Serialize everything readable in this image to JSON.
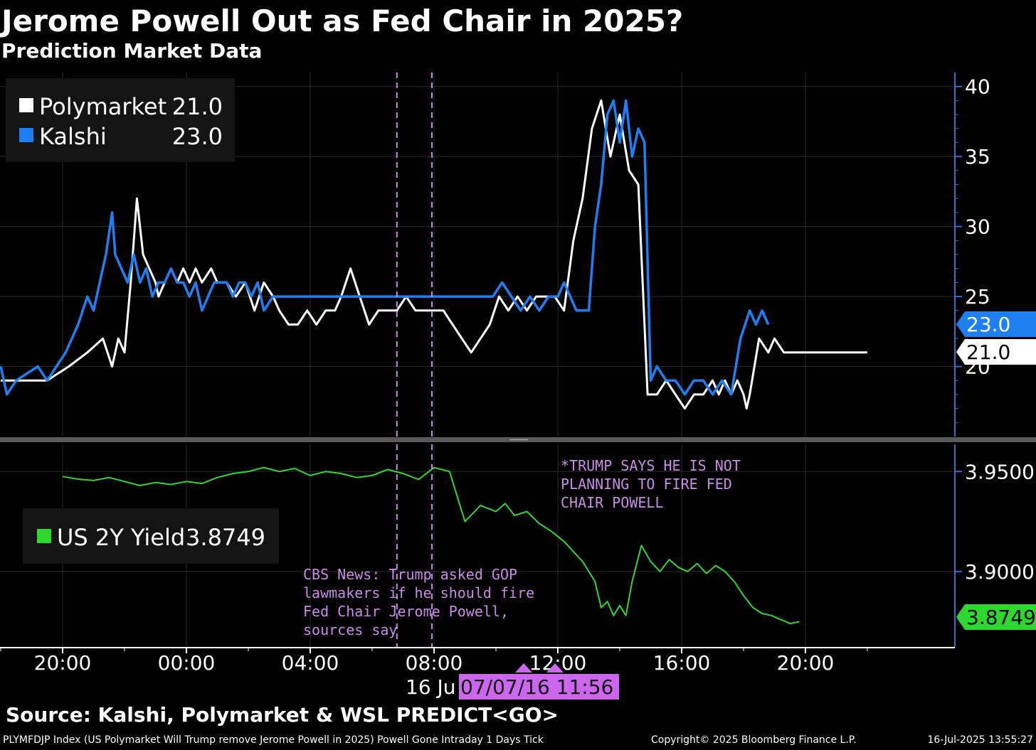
{
  "title": "Jerome Powell Out as Fed Chair in 2025?",
  "subtitle": "Prediction Market Data",
  "source": "Source: Kalshi, Polymarket & WSL PREDICT<GO>",
  "footer": {
    "left": "PLYMFDJP Index (US Polymarket Will Trump remove Jerome Powell in 2025) Powell Gone Intraday 1 Days  Tick",
    "copyright": "Copyright© 2025 Bloomberg Finance L.P.",
    "timestamp": "16-Jul-2025 13:55:27"
  },
  "colors": {
    "background": "#000000",
    "polymarket": "#ffffff",
    "kalshi": "#1f7ff0",
    "yield": "#2fd82f",
    "annotation": "#c98be8",
    "axis": "#2f6fd6",
    "grid": "#2c2c2c",
    "cursor_box": "#cc66ee"
  },
  "x_axis": {
    "tick_labels": [
      "20:00",
      "00:00",
      "04:00",
      "08:00",
      "12:00",
      "16:00",
      "20:00"
    ],
    "date_label": "16 Ju",
    "cursor_label": "07/07/16 11:56"
  },
  "chart_data": [
    {
      "type": "line",
      "name": "prediction-markets",
      "x_unit": "hours from 15 Jul 20:00",
      "x_range": [
        -2.0,
        28.5
      ],
      "ylim": [
        15,
        41
      ],
      "y_ticks": [
        20,
        25,
        30,
        35,
        40
      ],
      "y_tick_labels": [
        "20",
        "25",
        "30",
        "35",
        "40"
      ],
      "legend": {
        "position": "top-left",
        "entries": [
          {
            "name": "Polymarket",
            "value": "21.0"
          },
          {
            "name": "Kalshi",
            "value": "23.0"
          }
        ]
      },
      "last_value_tags": [
        "23.0",
        "21.0"
      ],
      "series": [
        {
          "name": "Polymarket",
          "x": [
            -2.0,
            -0.5,
            0.2,
            0.8,
            1.3,
            1.6,
            1.8,
            2.0,
            2.2,
            2.4,
            2.6,
            2.8,
            3.0,
            3.1,
            3.3,
            3.5,
            3.7,
            3.9,
            4.1,
            4.3,
            4.5,
            4.8,
            5.0,
            5.3,
            5.6,
            5.9,
            6.2,
            6.5,
            6.8,
            7.0,
            7.3,
            7.6,
            7.9,
            8.2,
            8.5,
            8.8,
            9.0,
            9.3,
            9.6,
            9.9,
            10.2,
            10.5,
            10.8,
            11.1,
            11.4,
            11.7,
            12.0,
            12.3,
            12.6,
            12.9,
            13.2,
            13.5,
            13.8,
            14.1,
            14.4,
            14.7,
            15.0,
            15.3,
            15.6,
            15.9,
            16.2,
            16.5,
            16.8,
            17.1,
            17.4,
            17.7,
            18.0,
            18.3,
            18.6,
            18.9,
            19.2,
            19.5,
            19.8,
            20.1,
            20.4,
            20.7,
            21.0,
            21.2,
            21.4,
            21.6,
            21.8,
            22.0,
            22.1,
            22.2,
            22.5,
            22.8,
            23.0,
            23.3,
            23.6,
            23.9,
            24.2,
            24.5,
            24.8,
            25.1,
            25.4,
            25.7,
            26.0
          ],
          "y": [
            19.0,
            19.0,
            20.0,
            21.0,
            22.0,
            20.0,
            22.0,
            21.0,
            26.0,
            32.0,
            28.0,
            27.0,
            26.0,
            25.0,
            26.0,
            27.0,
            26.0,
            27.0,
            26.0,
            27.0,
            26.0,
            27.0,
            26.0,
            26.0,
            25.0,
            26.0,
            24.0,
            26.0,
            25.0,
            24.0,
            23.0,
            23.0,
            24.0,
            23.0,
            24.0,
            24.0,
            25.0,
            27.0,
            25.0,
            23.0,
            24.0,
            24.0,
            24.0,
            25.0,
            24.0,
            24.0,
            24.0,
            24.0,
            23.0,
            22.0,
            21.0,
            22.0,
            23.0,
            25.0,
            24.0,
            25.0,
            24.0,
            25.0,
            25.0,
            25.0,
            24.0,
            29.0,
            32.0,
            37.0,
            39.0,
            35.0,
            38.0,
            34.0,
            33.0,
            18.0,
            18.0,
            19.0,
            18.0,
            17.0,
            18.0,
            18.0,
            19.0,
            18.0,
            19.0,
            18.0,
            19.0,
            18.0,
            17.0,
            18.0,
            22.0,
            21.0,
            22.0,
            21.0,
            21.0,
            21.0,
            21.0,
            21.0,
            21.0,
            21.0,
            21.0,
            21.0,
            21.0
          ]
        },
        {
          "name": "Kalshi",
          "x": [
            -2.0,
            -1.8,
            -1.5,
            -0.8,
            -0.5,
            -0.2,
            0.1,
            0.5,
            0.8,
            1.0,
            1.2,
            1.4,
            1.6,
            1.7,
            1.9,
            2.1,
            2.3,
            2.5,
            2.7,
            2.9,
            3.1,
            3.3,
            3.5,
            3.7,
            3.9,
            4.1,
            4.3,
            4.5,
            4.7,
            4.9,
            5.1,
            5.3,
            5.5,
            5.7,
            5.9,
            6.1,
            6.3,
            6.5,
            6.8,
            7.0,
            7.3,
            7.6,
            7.9,
            8.2,
            8.5,
            8.8,
            9.1,
            9.4,
            9.7,
            10.0,
            10.3,
            10.6,
            10.9,
            11.2,
            11.5,
            11.8,
            12.1,
            12.4,
            12.7,
            13.0,
            13.3,
            13.6,
            13.9,
            14.2,
            14.5,
            14.8,
            15.1,
            15.4,
            15.7,
            16.0,
            16.2,
            16.4,
            16.6,
            16.8,
            17.0,
            17.2,
            17.4,
            17.6,
            17.8,
            18.0,
            18.2,
            18.4,
            18.6,
            18.8,
            19.0,
            19.2,
            19.5,
            19.8,
            20.1,
            20.4,
            20.7,
            21.0,
            21.3,
            21.6,
            21.9,
            22.2,
            22.4,
            22.6,
            22.8
          ],
          "y": [
            20.0,
            18.0,
            19.0,
            20.0,
            19.0,
            20.0,
            21.0,
            23.0,
            25.0,
            24.0,
            26.0,
            28.0,
            31.0,
            28.0,
            27.0,
            26.0,
            28.0,
            26.0,
            27.0,
            25.0,
            26.0,
            26.0,
            27.0,
            26.0,
            26.0,
            25.0,
            26.0,
            24.0,
            25.0,
            26.0,
            26.0,
            26.0,
            25.0,
            26.0,
            26.0,
            25.0,
            26.0,
            24.0,
            25.0,
            25.0,
            25.0,
            25.0,
            25.0,
            25.0,
            25.0,
            25.0,
            25.0,
            25.0,
            25.0,
            25.0,
            25.0,
            25.0,
            25.0,
            25.0,
            25.0,
            25.0,
            25.0,
            25.0,
            25.0,
            25.0,
            25.0,
            25.0,
            25.0,
            26.0,
            25.0,
            24.0,
            25.0,
            24.0,
            25.0,
            25.0,
            26.0,
            25.0,
            24.0,
            24.0,
            24.0,
            30.0,
            33.0,
            38.0,
            39.0,
            36.0,
            39.0,
            35.0,
            37.0,
            36.0,
            19.0,
            20.0,
            19.0,
            19.0,
            18.0,
            19.0,
            19.0,
            18.0,
            19.0,
            18.0,
            22.0,
            24.0,
            23.0,
            24.0,
            23.0
          ]
        }
      ]
    },
    {
      "type": "line",
      "name": "us-2y-yield",
      "x_unit": "hours from 15 Jul 20:00",
      "x_range": [
        -2.0,
        28.5
      ],
      "ylim": [
        3.8623,
        3.9636
      ],
      "y_ticks": [
        3.95,
        3.9
      ],
      "y_tick_labels": [
        "3.9500",
        "3.9000"
      ],
      "legend": {
        "position": "left",
        "entries": [
          {
            "name": "US 2Y Yield",
            "value": "3.8749"
          }
        ]
      },
      "last_value_tags": [
        "3.8749"
      ],
      "series": [
        {
          "name": "US 2Y Yield",
          "x": [
            0.0,
            0.5,
            1.0,
            1.5,
            2.0,
            2.5,
            3.0,
            3.5,
            4.0,
            4.5,
            5.0,
            5.5,
            6.0,
            6.5,
            7.0,
            7.5,
            8.0,
            8.5,
            9.0,
            9.5,
            10.0,
            10.5,
            11.0,
            11.5,
            12.0,
            12.5,
            13.0,
            13.5,
            14.0,
            14.3,
            14.6,
            15.0,
            15.4,
            15.8,
            16.2,
            16.5,
            16.8,
            17.0,
            17.2,
            17.4,
            17.6,
            17.8,
            18.0,
            18.2,
            18.4,
            18.7,
            19.0,
            19.3,
            19.6,
            19.9,
            20.2,
            20.5,
            20.8,
            21.1,
            21.4,
            21.7,
            22.0,
            22.3,
            22.6,
            22.9,
            23.2,
            23.5,
            23.8
          ],
          "y": [
            3.9475,
            3.9462,
            3.9455,
            3.947,
            3.945,
            3.943,
            3.9445,
            3.9435,
            3.945,
            3.944,
            3.947,
            3.949,
            3.95,
            3.952,
            3.95,
            3.9515,
            3.948,
            3.95,
            3.949,
            3.947,
            3.948,
            3.951,
            3.949,
            3.946,
            3.952,
            3.95,
            3.925,
            3.933,
            3.93,
            3.934,
            3.928,
            3.93,
            3.924,
            3.92,
            3.915,
            3.91,
            3.905,
            3.9,
            3.895,
            3.882,
            3.885,
            3.878,
            3.883,
            3.878,
            3.895,
            3.913,
            3.905,
            3.9,
            3.906,
            3.902,
            3.9,
            3.904,
            3.899,
            3.903,
            3.9,
            3.895,
            3.888,
            3.882,
            3.879,
            3.878,
            3.876,
            3.874,
            3.8749
          ]
        }
      ]
    }
  ],
  "event_markers": {
    "x": [
      10.8,
      11.933
    ]
  },
  "annotations": {
    "trump_lines": [
      "*TRUMP SAYS HE IS NOT",
      "PLANNING TO FIRE FED",
      "CHAIR POWELL"
    ],
    "cbs_lines": [
      "CBS News: Trump asked GOP",
      "lawmakers if he should fire",
      "Fed Chair Jerome Powell,",
      "sources say"
    ]
  }
}
